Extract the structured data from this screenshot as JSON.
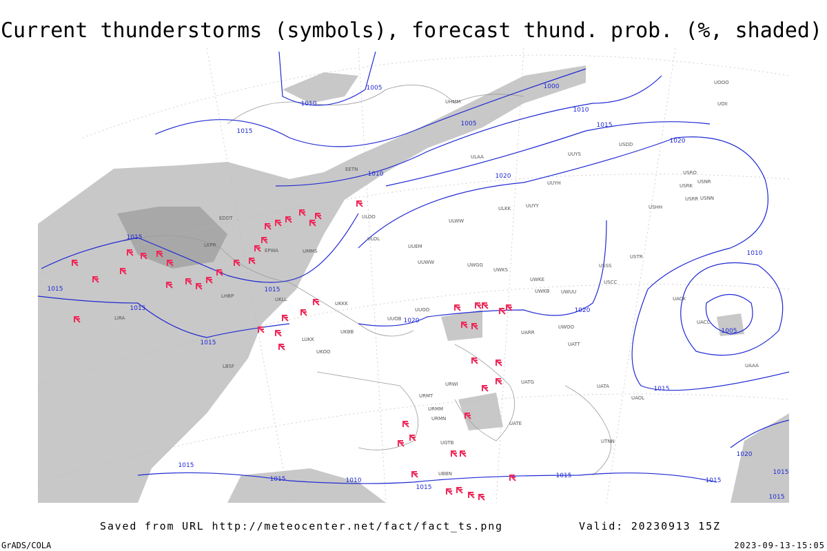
{
  "header": {
    "title": "Current thunderstorms (symbols), forecast thund. prob. (%, shaded)"
  },
  "footer": {
    "saved": "Saved from URL http://meteocenter.net/fact/fact_ts.png",
    "valid": "Valid: 20230913 15Z",
    "software": "GrADS/COLA",
    "timestamp": "2023-09-13-15:05"
  },
  "isobar_labels": [
    "1005",
    "1010",
    "1015",
    "1000",
    "1010",
    "1005",
    "1015",
    "1020",
    "1010",
    "1020",
    "1015",
    "1015",
    "1015",
    "1015",
    "1020",
    "1020",
    "1015",
    "1010",
    "1005",
    "1015",
    "1015",
    "1015",
    "1010",
    "1015",
    "1015",
    "1020",
    "1015",
    "1015",
    "1015"
  ],
  "stations": [
    "ULAA",
    "UUYS",
    "UUYH",
    "ULKK",
    "UUYY",
    "ULWW",
    "UUEM",
    "UUWW",
    "UWGG",
    "UWKS",
    "USSS",
    "USTR",
    "USCC",
    "UWKE",
    "UWKB",
    "UWUU",
    "UUOO",
    "UUOB",
    "UWOO",
    "UATT",
    "UARR",
    "URWI",
    "URMT",
    "URMM",
    "URMN",
    "UGTB",
    "UBBN",
    "USDD",
    "USRR",
    "USRK",
    "USRO",
    "USNN",
    "USNR",
    "USHH",
    "UACC",
    "UAAA",
    "UACK",
    "UATA",
    "UAOL",
    "UATG",
    "UATE",
    "UTNN",
    "EDDT",
    "LKPR",
    "EPWA",
    "UMMS",
    "ULOL",
    "ULOO",
    "UKKK",
    "UKLL",
    "LHBP",
    "LIRA",
    "UKBB",
    "LUKK",
    "UKOO",
    "LBSF",
    "UHMM",
    "UOOO",
    "UOII",
    "EETN"
  ]
}
